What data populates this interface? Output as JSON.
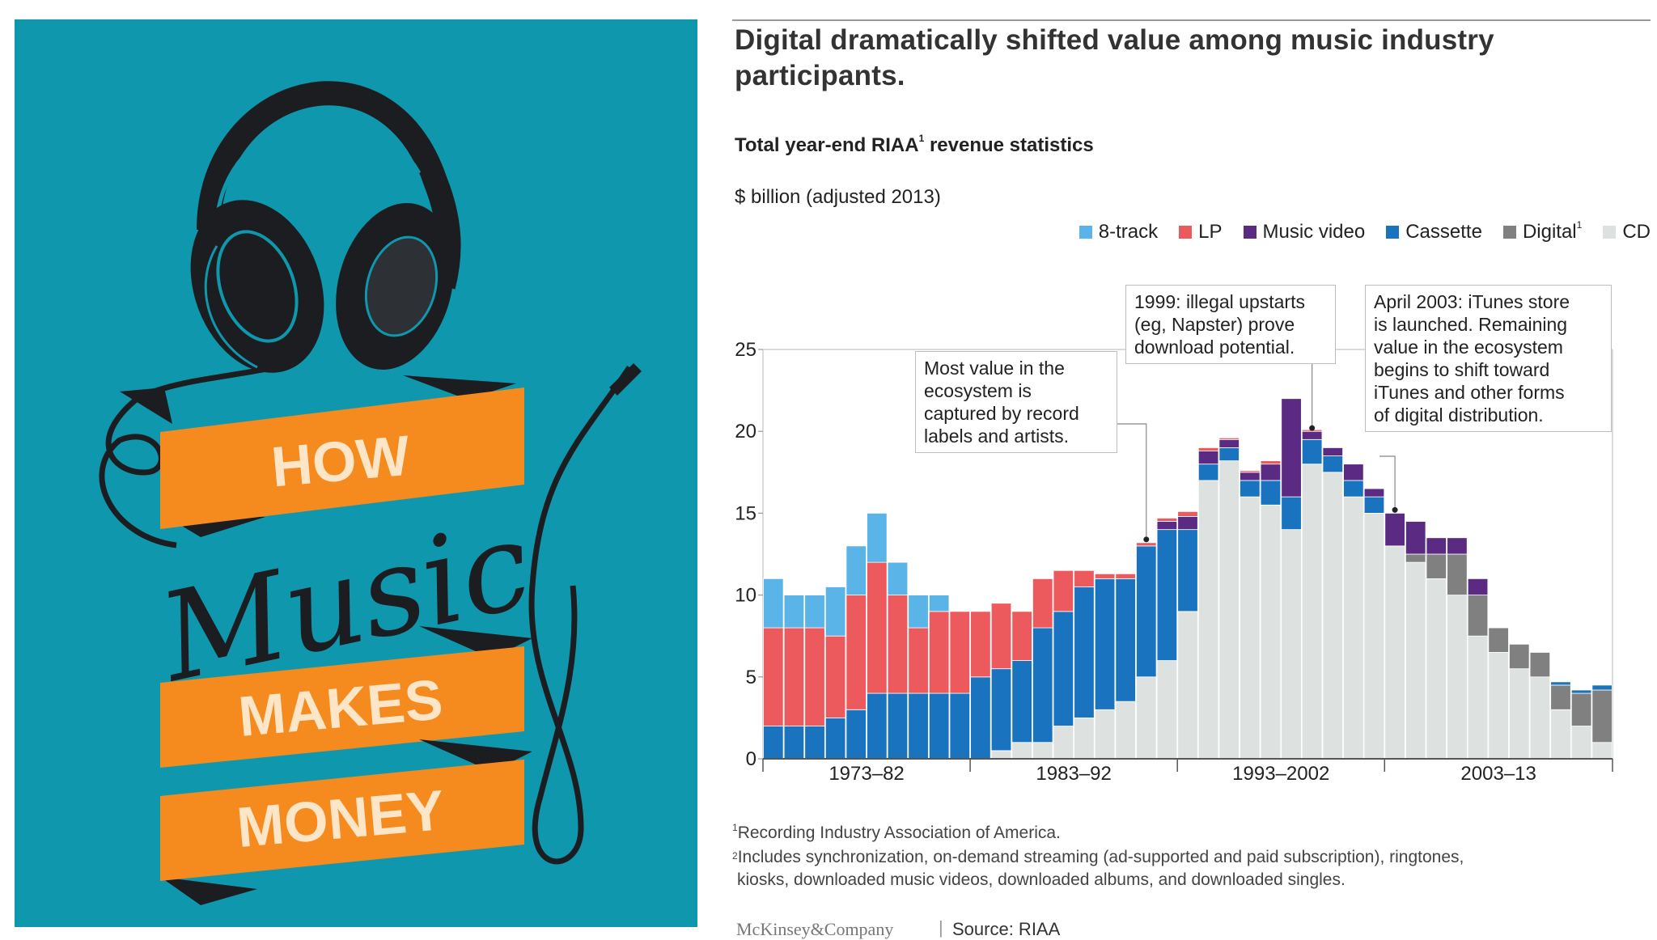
{
  "poster": {
    "word_how": "HOW",
    "word_music": "Music",
    "word_makes": "MAKES",
    "word_money": "MONEY",
    "colors": {
      "background": "#0f98ad",
      "banner": "#f58b1f",
      "ink": "#1b1d20",
      "banner_text": "#fde5c8"
    }
  },
  "panel": {
    "headline": "Digital dramatically shifted value among music industry participants.",
    "subtitle_pre": "Total year-end RIAA",
    "subtitle_sup": "1",
    "subtitle_post": " revenue statistics",
    "unit": "$ billion (adjusted 2013)",
    "footnote1_sup": "1",
    "footnote1": "Recording Industry Association of America.",
    "footnote2_sup": "2",
    "footnote2_line1": "Includes synchronization, on-demand streaming (ad-supported and paid subscription), ringtones,",
    "footnote2_line2": "kiosks, downloaded music videos, downloaded albums, and downloaded singles.",
    "brand": "McKinsey&Company",
    "separator": "|",
    "source": "Source: RIAA"
  },
  "legend": [
    {
      "label": "8-track",
      "sup": "",
      "color": "#5ab4e8"
    },
    {
      "label": "LP",
      "sup": "",
      "color": "#ec5a5e"
    },
    {
      "label": "Music video",
      "sup": "",
      "color": "#5b2b83"
    },
    {
      "label": "Cassette",
      "sup": "",
      "color": "#1a73bf"
    },
    {
      "label": "Digital",
      "sup": "1",
      "color": "#808080"
    },
    {
      "label": "CD",
      "sup": "",
      "color": "#dde1e0"
    }
  ],
  "annotations": {
    "note1": "Most value in the ecosystem is captured by record labels and artists.",
    "note1_lines": [
      "Most value in the",
      "ecosystem is",
      "captured by record",
      "labels and artists."
    ],
    "note2_lines": [
      "1999: illegal upstarts",
      "(eg, Napster) prove",
      "download potential."
    ],
    "note3_lines": [
      "April 2003: iTunes store",
      "is launched. Remaining",
      "value in the ecosystem",
      "begins to shift toward",
      "iTunes and other forms",
      "of digital distribution."
    ]
  },
  "chart_data": {
    "type": "bar",
    "stacked": true,
    "title": "Total year-end RIAA revenue statistics",
    "ylabel": "$ billion (adjusted 2013)",
    "ylim": [
      0,
      25
    ],
    "yticks": [
      0,
      5,
      10,
      15,
      20,
      25
    ],
    "x": [
      1973,
      1974,
      1975,
      1976,
      1977,
      1978,
      1979,
      1980,
      1981,
      1982,
      1983,
      1984,
      1985,
      1986,
      1987,
      1988,
      1989,
      1990,
      1991,
      1992,
      1993,
      1994,
      1995,
      1996,
      1997,
      1998,
      1999,
      2000,
      2001,
      2002,
      2003,
      2004,
      2005,
      2006,
      2007,
      2008,
      2009,
      2010,
      2011,
      2012,
      2013
    ],
    "x_groups": [
      "1973–82",
      "1983–92",
      "1993–2002",
      "2003–13"
    ],
    "series": [
      {
        "name": "CD",
        "color": "#dde1e0",
        "values": [
          0,
          0,
          0,
          0,
          0,
          0,
          0,
          0,
          0,
          0,
          0,
          0.5,
          1.0,
          1.0,
          2.0,
          2.5,
          3.0,
          3.5,
          5.0,
          6.0,
          9.0,
          17.0,
          18.2,
          16.0,
          15.5,
          14.0,
          18.0,
          17.5,
          16.0,
          15.0,
          13.0,
          12.0,
          11.0,
          10.0,
          7.5,
          6.5,
          5.5,
          5.0,
          3.0,
          2.0,
          1.0
        ]
      },
      {
        "name": "Digital",
        "color": "#808080",
        "values": [
          0,
          0,
          0,
          0,
          0,
          0,
          0,
          0,
          0,
          0,
          0,
          0,
          0,
          0,
          0,
          0,
          0,
          0,
          0,
          0,
          0,
          0,
          0,
          0,
          0,
          0,
          0,
          0,
          0,
          0,
          0,
          0.5,
          1.5,
          2.5,
          2.5,
          1.5,
          1.5,
          1.5,
          1.5,
          2.0,
          3.2
        ]
      },
      {
        "name": "Cassette",
        "color": "#1a73bf",
        "values": [
          2.0,
          2.0,
          2.0,
          2.5,
          3.0,
          4.0,
          4.0,
          4.0,
          4.0,
          4.0,
          5.0,
          5.0,
          5.0,
          7.0,
          7.0,
          8.0,
          8.0,
          7.5,
          8.0,
          8.0,
          5.0,
          1.0,
          0.8,
          1.0,
          1.5,
          2.0,
          1.5,
          1.0,
          1.0,
          1.0,
          0,
          0,
          0,
          0,
          0,
          0,
          0,
          0,
          0.2,
          0.2,
          0.3
        ]
      },
      {
        "name": "Music video",
        "color": "#5b2b83",
        "values": [
          0,
          0,
          0,
          0,
          0,
          0,
          0,
          0,
          0,
          0,
          0,
          0,
          0,
          0,
          0,
          0,
          0,
          0,
          0,
          0.5,
          0.8,
          0.8,
          0.5,
          0.5,
          1.0,
          6.0,
          0.5,
          0.5,
          1.0,
          0.5,
          2.0,
          2.0,
          1.0,
          1.0,
          1.0,
          0,
          0,
          0,
          0,
          0,
          0
        ]
      },
      {
        "name": "LP",
        "color": "#ec5a5e",
        "values": [
          6.0,
          6.0,
          6.0,
          5.0,
          7.0,
          8.0,
          6.0,
          4.0,
          5.0,
          5.0,
          4.0,
          4.0,
          3.0,
          3.0,
          2.5,
          1.0,
          0.3,
          0.3,
          0.2,
          0.2,
          0.3,
          0.2,
          0.1,
          0.1,
          0.2,
          0,
          0.1,
          0,
          0,
          0,
          0,
          0,
          0,
          0,
          0,
          0,
          0,
          0,
          0,
          0,
          0
        ]
      },
      {
        "name": "8-track",
        "color": "#5ab4e8",
        "values": [
          3.0,
          2.0,
          2.0,
          3.0,
          3.0,
          3.0,
          2.0,
          2.0,
          1.0,
          0,
          0,
          0,
          0,
          0,
          0,
          0,
          0,
          0,
          0,
          0,
          0,
          0,
          0,
          0,
          0,
          0,
          0,
          0,
          0,
          0,
          0,
          0,
          0,
          0,
          0,
          0,
          0,
          0,
          0,
          0,
          0
        ]
      }
    ],
    "annotation_years": [
      1991,
      1999,
      2003
    ]
  }
}
